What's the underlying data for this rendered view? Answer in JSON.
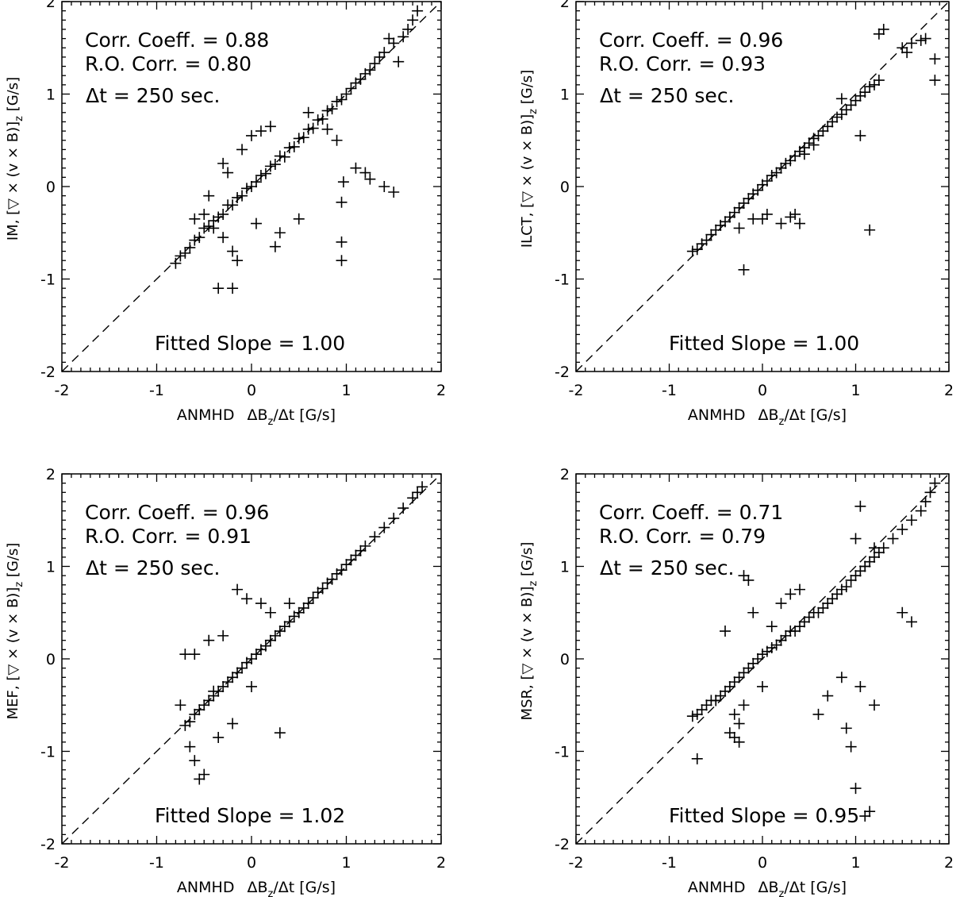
{
  "chart_data": [
    {
      "type": "scatter",
      "panel": "IM",
      "title": "",
      "xlabel_prefix": "ANMHD",
      "xlabel_main": "ΔB",
      "xlabel_sub": "z",
      "xlabel_suffix": "/Δt [G/s]",
      "ylabel_prefix": "IM, [",
      "ylabel_symbol": "▽",
      "ylabel_middle": " × (v × B)]",
      "ylabel_sub": "z",
      "ylabel_suffix": " [G/s]",
      "xlim": [
        -2,
        2
      ],
      "ylim": [
        -2,
        2
      ],
      "xticks": [
        "-2",
        "-1",
        "0",
        "1",
        "2"
      ],
      "yticks": [
        "-2",
        "-1",
        "0",
        "1",
        "2"
      ],
      "corr_label": "Corr. Coeff. = 0.88",
      "ro_label": "R.O. Corr. = 0.80",
      "dt_label": "Δt =  250 sec.",
      "slope_label": "Fitted Slope = 1.00",
      "corr_coeff": 0.88,
      "ro_corr": 0.8,
      "fitted_slope": 1.0,
      "x": [
        -0.75,
        -0.7,
        -0.65,
        -0.6,
        -0.55,
        -0.5,
        -0.45,
        -0.4,
        -0.35,
        -0.3,
        -0.25,
        -0.2,
        -0.15,
        -0.1,
        -0.05,
        0.0,
        0.05,
        0.1,
        0.15,
        0.2,
        0.25,
        0.3,
        0.35,
        0.4,
        0.45,
        0.5,
        0.55,
        0.6,
        0.65,
        0.7,
        0.75,
        0.8,
        0.85,
        0.9,
        0.95,
        1.0,
        1.05,
        1.1,
        1.15,
        1.2,
        1.25,
        1.3,
        1.4,
        1.5,
        1.6,
        1.65,
        1.7,
        1.75,
        -0.8,
        -0.6,
        -0.45,
        -0.3,
        -0.25,
        -0.1,
        0.0,
        0.1,
        0.2,
        -0.3,
        -0.2,
        0.95,
        0.95,
        0.97,
        0.95,
        1.1,
        1.2,
        1.25,
        1.4,
        1.5,
        -0.35,
        -0.2,
        -0.5,
        -0.4,
        0.3,
        0.5,
        0.9,
        0.8,
        0.6,
        -0.15,
        0.05,
        0.25,
        1.35,
        1.55,
        1.45
      ],
      "y": [
        -0.75,
        -0.72,
        -0.66,
        -0.58,
        -0.55,
        -0.45,
        -0.43,
        -0.37,
        -0.33,
        -0.3,
        -0.2,
        -0.2,
        -0.12,
        -0.1,
        -0.02,
        0.0,
        0.05,
        0.12,
        0.14,
        0.22,
        0.24,
        0.33,
        0.32,
        0.42,
        0.43,
        0.52,
        0.53,
        0.62,
        0.63,
        0.72,
        0.73,
        0.82,
        0.84,
        0.92,
        0.94,
        1.0,
        1.06,
        1.12,
        1.16,
        1.22,
        1.26,
        1.33,
        1.45,
        1.55,
        1.62,
        1.7,
        1.8,
        1.9,
        -0.83,
        -0.35,
        -0.1,
        0.25,
        0.15,
        0.4,
        0.55,
        0.6,
        0.65,
        -0.55,
        -0.7,
        -0.6,
        -0.8,
        0.05,
        -0.17,
        0.2,
        0.15,
        0.08,
        0.0,
        -0.06,
        -1.1,
        -1.1,
        -0.3,
        -0.45,
        -0.5,
        -0.35,
        0.5,
        0.62,
        0.8,
        -0.8,
        -0.4,
        -0.65,
        1.4,
        1.35,
        1.6
      ]
    },
    {
      "type": "scatter",
      "panel": "ILCT",
      "title": "",
      "xlabel_prefix": "ANMHD",
      "xlabel_main": "ΔB",
      "xlabel_sub": "z",
      "xlabel_suffix": "/Δt [G/s]",
      "ylabel_prefix": "ILCT, [",
      "ylabel_symbol": "▽",
      "ylabel_middle": " × (v × B)]",
      "ylabel_sub": "z",
      "ylabel_suffix": " [G/s]",
      "xlim": [
        -2,
        2
      ],
      "ylim": [
        -2,
        2
      ],
      "xticks": [
        "-2",
        "-1",
        "0",
        "1",
        "2"
      ],
      "yticks": [
        "-2",
        "-1",
        "0",
        "1",
        "2"
      ],
      "corr_label": "Corr. Coeff. = 0.96",
      "ro_label": "R.O. Corr. = 0.93",
      "dt_label": "Δt =  250 sec.",
      "slope_label": "Fitted Slope = 1.00",
      "corr_coeff": 0.96,
      "ro_corr": 0.93,
      "fitted_slope": 1.0,
      "x": [
        -0.75,
        -0.7,
        -0.65,
        -0.6,
        -0.55,
        -0.5,
        -0.45,
        -0.4,
        -0.35,
        -0.3,
        -0.25,
        -0.2,
        -0.15,
        -0.1,
        -0.05,
        0.0,
        0.05,
        0.1,
        0.15,
        0.2,
        0.25,
        0.3,
        0.35,
        0.4,
        0.45,
        0.5,
        0.55,
        0.6,
        0.65,
        0.7,
        0.75,
        0.8,
        0.85,
        0.9,
        0.95,
        1.0,
        1.05,
        1.1,
        1.15,
        1.2,
        1.25,
        1.5,
        1.55,
        1.6,
        1.7,
        1.75,
        1.85,
        1.85,
        -0.2,
        0.3,
        0.35,
        0.4,
        1.3,
        1.25,
        0.45,
        0.55,
        0.85,
        1.05,
        1.15,
        -0.25,
        -0.1,
        0.0,
        0.2,
        0.05
      ],
      "y": [
        -0.7,
        -0.68,
        -0.62,
        -0.58,
        -0.52,
        -0.47,
        -0.42,
        -0.38,
        -0.33,
        -0.28,
        -0.23,
        -0.18,
        -0.13,
        -0.08,
        -0.04,
        0.02,
        0.06,
        0.12,
        0.15,
        0.2,
        0.25,
        0.28,
        0.33,
        0.38,
        0.42,
        0.47,
        0.52,
        0.55,
        0.6,
        0.65,
        0.7,
        0.75,
        0.78,
        0.83,
        0.88,
        0.93,
        0.98,
        1.02,
        1.08,
        1.1,
        1.15,
        1.5,
        1.45,
        1.55,
        1.58,
        1.6,
        1.38,
        1.15,
        -0.9,
        -0.33,
        -0.3,
        -0.4,
        1.7,
        1.65,
        0.35,
        0.45,
        0.95,
        0.55,
        -0.47,
        -0.45,
        -0.35,
        -0.35,
        -0.4,
        -0.3
      ]
    },
    {
      "type": "scatter",
      "panel": "MEF",
      "title": "",
      "xlabel_prefix": "ANMHD",
      "xlabel_main": "ΔB",
      "xlabel_sub": "z",
      "xlabel_suffix": "/Δt [G/s]",
      "ylabel_prefix": "MEF, [",
      "ylabel_symbol": "▽",
      "ylabel_middle": " × (v × B)]",
      "ylabel_sub": "z",
      "ylabel_suffix": " [G/s]",
      "xlim": [
        -2,
        2
      ],
      "ylim": [
        -2,
        2
      ],
      "xticks": [
        "-2",
        "-1",
        "0",
        "1",
        "2"
      ],
      "yticks": [
        "-2",
        "-1",
        "0",
        "1",
        "2"
      ],
      "corr_label": "Corr. Coeff. = 0.96",
      "ro_label": "R.O. Corr. = 0.91",
      "dt_label": "Δt =  250 sec.",
      "slope_label": "Fitted Slope = 1.02",
      "corr_coeff": 0.96,
      "ro_corr": 0.91,
      "fitted_slope": 1.02,
      "x": [
        -0.7,
        -0.65,
        -0.6,
        -0.55,
        -0.5,
        -0.45,
        -0.4,
        -0.35,
        -0.3,
        -0.25,
        -0.2,
        -0.15,
        -0.1,
        -0.05,
        0.0,
        0.05,
        0.1,
        0.15,
        0.2,
        0.25,
        0.3,
        0.35,
        0.4,
        0.45,
        0.5,
        0.55,
        0.6,
        0.65,
        0.7,
        0.75,
        0.8,
        0.85,
        0.9,
        0.95,
        1.0,
        1.05,
        1.1,
        1.15,
        1.2,
        1.3,
        1.4,
        1.5,
        1.6,
        1.7,
        1.75,
        1.8,
        -0.75,
        -0.65,
        -0.6,
        -0.55,
        -0.5,
        -0.45,
        -0.4,
        -0.6,
        -0.7,
        -0.15,
        -0.05,
        0.1,
        0.2,
        0.3,
        -0.3,
        -0.2,
        0.0,
        0.4,
        -0.35
      ],
      "y": [
        -0.72,
        -0.68,
        -0.6,
        -0.55,
        -0.5,
        -0.45,
        -0.4,
        -0.35,
        -0.3,
        -0.25,
        -0.2,
        -0.15,
        -0.1,
        -0.04,
        0.0,
        0.05,
        0.1,
        0.14,
        0.2,
        0.25,
        0.3,
        0.35,
        0.4,
        0.46,
        0.5,
        0.55,
        0.6,
        0.66,
        0.72,
        0.76,
        0.82,
        0.86,
        0.92,
        0.96,
        1.02,
        1.07,
        1.12,
        1.17,
        1.22,
        1.32,
        1.42,
        1.52,
        1.63,
        1.74,
        1.8,
        1.86,
        -0.5,
        -0.95,
        -1.1,
        -1.3,
        -1.25,
        0.2,
        -0.35,
        0.05,
        0.05,
        0.75,
        0.65,
        0.6,
        0.5,
        -0.8,
        0.25,
        -0.7,
        -0.3,
        0.6,
        -0.85
      ]
    },
    {
      "type": "scatter",
      "panel": "MSR",
      "title": "",
      "xlabel_prefix": "ANMHD",
      "xlabel_main": "ΔB",
      "xlabel_sub": "z",
      "xlabel_suffix": "/Δt [G/s]",
      "ylabel_prefix": "MSR, [",
      "ylabel_symbol": "▽",
      "ylabel_middle": " × (v × B)]",
      "ylabel_sub": "z",
      "ylabel_suffix": " [G/s]",
      "xlim": [
        -2,
        2
      ],
      "ylim": [
        -2,
        2
      ],
      "xticks": [
        "-2",
        "-1",
        "0",
        "1",
        "2"
      ],
      "yticks": [
        "-2",
        "-1",
        "0",
        "1",
        "2"
      ],
      "corr_label": "Corr. Coeff. = 0.71",
      "ro_label": "R.O. Corr. = 0.79",
      "dt_label": "Δt =  250 sec.",
      "slope_label": "Fitted Slope = 0.95",
      "corr_coeff": 0.71,
      "ro_corr": 0.79,
      "fitted_slope": 0.95,
      "x": [
        -0.75,
        -0.7,
        -0.65,
        -0.6,
        -0.55,
        -0.5,
        -0.45,
        -0.4,
        -0.35,
        -0.3,
        -0.25,
        -0.2,
        -0.15,
        -0.1,
        -0.05,
        0.0,
        0.05,
        0.1,
        0.15,
        0.2,
        0.25,
        0.3,
        0.35,
        0.4,
        0.45,
        0.5,
        0.55,
        0.6,
        0.65,
        0.7,
        0.75,
        0.8,
        0.85,
        0.9,
        0.95,
        1.0,
        1.05,
        1.1,
        1.15,
        1.2,
        1.25,
        1.3,
        1.4,
        1.5,
        1.6,
        1.7,
        1.75,
        1.8,
        1.85,
        -0.7,
        -0.35,
        -0.3,
        -0.25,
        -0.2,
        -0.15,
        0.9,
        0.95,
        1.0,
        1.1,
        1.15,
        1.05,
        1.2,
        0.85,
        0.6,
        0.7,
        -0.1,
        0.1,
        0.2,
        -0.2,
        -0.25,
        -0.3,
        1.5,
        1.6,
        1.1,
        1.05,
        -0.4,
        -0.5,
        0.0,
        0.3,
        0.4,
        1.0,
        1.2
      ],
      "y": [
        -0.62,
        -0.6,
        -0.55,
        -0.5,
        -0.45,
        -0.45,
        -0.4,
        -0.35,
        -0.3,
        -0.25,
        -0.2,
        -0.15,
        -0.1,
        -0.05,
        0.0,
        0.05,
        0.08,
        0.12,
        0.15,
        0.2,
        0.25,
        0.3,
        0.3,
        0.35,
        0.4,
        0.45,
        0.5,
        0.5,
        0.55,
        0.6,
        0.65,
        0.7,
        0.75,
        0.78,
        0.85,
        0.9,
        0.95,
        1.0,
        1.05,
        1.1,
        1.15,
        1.2,
        1.3,
        1.4,
        1.5,
        1.6,
        1.7,
        1.8,
        1.9,
        -1.08,
        -0.8,
        -0.85,
        -0.9,
        0.9,
        0.85,
        -0.75,
        -0.95,
        -1.4,
        -1.7,
        -1.65,
        -0.3,
        -0.5,
        -0.2,
        -0.6,
        -0.4,
        0.5,
        0.35,
        0.6,
        -0.5,
        -0.7,
        -0.6,
        0.5,
        0.4,
        1.0,
        1.65,
        0.3,
        -0.45,
        -0.3,
        0.7,
        0.75,
        1.3,
        1.2
      ]
    }
  ]
}
